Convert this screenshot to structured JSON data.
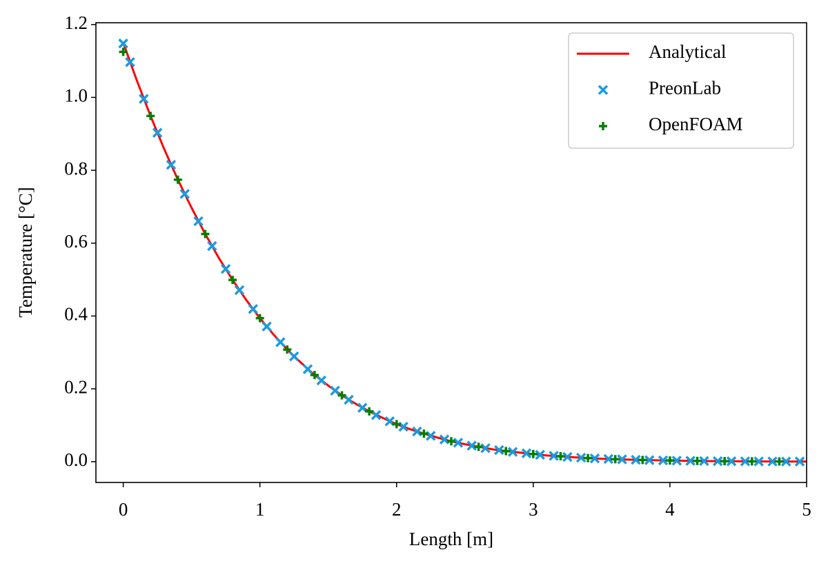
{
  "chart_data": {
    "type": "line",
    "x_label": "Length [m]",
    "y_label": "Temperature [°C]",
    "xlim": [
      -0.2,
      5
    ],
    "ylim": [
      -0.057,
      1.205
    ],
    "xticks": [
      0,
      1,
      2,
      3,
      4,
      5
    ],
    "yticks": [
      {
        "value": 0,
        "label": "0.0"
      },
      0.2,
      0.4,
      0.6,
      0.8,
      {
        "value": 1,
        "label": "1.0"
      },
      1.2
    ],
    "grid": false,
    "legend": "upper right",
    "series": [
      {
        "name": "Analytical",
        "color": "#ff0000",
        "marker": null,
        "x": [
          0,
          0.1,
          0.2,
          0.3,
          0.4,
          0.5,
          0.6,
          0.7,
          0.8,
          0.9,
          1,
          1.1,
          1.2,
          1.3,
          1.4,
          1.5,
          1.6,
          1.7,
          1.8,
          1.9,
          2,
          2.1,
          2.2,
          2.3,
          2.4,
          2.5,
          2.6,
          2.7,
          2.8,
          2.9,
          3,
          3.1,
          3.2,
          3.3,
          3.4,
          3.5,
          3.6,
          3.7,
          3.8,
          3.9,
          4,
          4.1,
          4.2,
          4.3,
          4.4,
          4.5,
          4.6,
          4.7,
          4.8,
          4.9,
          5
        ],
        "values": [
          1.15,
          1.046,
          0.949,
          0.858,
          0.774,
          0.697,
          0.625,
          0.559,
          0.499,
          0.444,
          0.394,
          0.349,
          0.308,
          0.272,
          0.238,
          0.209,
          0.182,
          0.159,
          0.138,
          0.12,
          0.103,
          0.089,
          0.077,
          0.066,
          0.056,
          0.048,
          0.041,
          0.034,
          0.029,
          0.025,
          0.021,
          0.017,
          0.015,
          0.012,
          0.01,
          0.008,
          0.0069,
          0.0057,
          0.0047,
          0.0039,
          0.0032,
          0.0026,
          0.0021,
          0.0017,
          0.0013,
          0.0011,
          0.0009,
          0.0007,
          0.0006,
          0.0005,
          0.0004
        ]
      },
      {
        "name": "PreonLab",
        "color": "#1a9be0",
        "marker": "x",
        "x": [
          0,
          0.05,
          0.15,
          0.25,
          0.35,
          0.45,
          0.55,
          0.65,
          0.75,
          0.85,
          0.95,
          1.05,
          1.15,
          1.25,
          1.35,
          1.45,
          1.55,
          1.65,
          1.75,
          1.85,
          1.95,
          2.05,
          2.15,
          2.25,
          2.35,
          2.45,
          2.55,
          2.65,
          2.75,
          2.85,
          2.95,
          3.05,
          3.15,
          3.25,
          3.35,
          3.45,
          3.55,
          3.65,
          3.75,
          3.85,
          3.95,
          4.05,
          4.15,
          4.25,
          4.35,
          4.45,
          4.55,
          4.65,
          4.75,
          4.85,
          4.95
        ],
        "values": [
          1.148,
          1.097,
          0.996,
          0.903,
          0.815,
          0.735,
          0.66,
          0.592,
          0.529,
          0.471,
          0.419,
          0.371,
          0.328,
          0.289,
          0.254,
          0.223,
          0.195,
          0.17,
          0.148,
          0.128,
          0.111,
          0.096,
          0.083,
          0.071,
          0.061,
          0.052,
          0.044,
          0.037,
          0.032,
          0.027,
          0.023,
          0.019,
          0.016,
          0.013,
          0.011,
          0.009,
          0.0076,
          0.0063,
          0.0052,
          0.0043,
          0.0035,
          0.0029,
          0.0023,
          0.0019,
          0.0015,
          0.0012,
          0.001,
          0.0008,
          0.0006,
          0.0005,
          0.0004
        ]
      },
      {
        "name": "OpenFOAM",
        "color": "#008000",
        "marker": "+",
        "x": [
          0,
          0.2,
          0.4,
          0.6,
          0.8,
          1,
          1.2,
          1.4,
          1.6,
          1.8,
          2,
          2.2,
          2.4,
          2.6,
          2.8,
          3,
          3.2,
          3.4,
          3.6,
          3.8,
          4,
          4.2,
          4.4,
          4.6,
          4.8
        ],
        "values": [
          1.125,
          0.949,
          0.774,
          0.625,
          0.499,
          0.394,
          0.308,
          0.238,
          0.182,
          0.138,
          0.103,
          0.077,
          0.056,
          0.041,
          0.029,
          0.021,
          0.015,
          0.01,
          0.0069,
          0.0047,
          0.0032,
          0.0021,
          0.0013,
          0.0009,
          0.0006
        ]
      }
    ]
  }
}
